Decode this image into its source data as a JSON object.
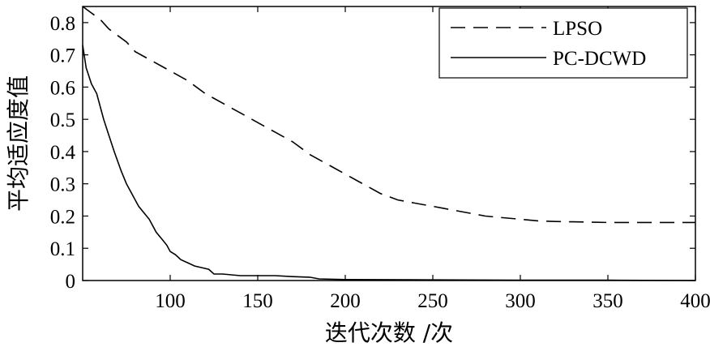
{
  "chart_data": {
    "type": "line",
    "xlabel": "迭代次数 /次",
    "ylabel": "平均适应度值",
    "xlim": [
      50,
      400
    ],
    "ylim": [
      0,
      0.85
    ],
    "xticks": [
      100,
      150,
      200,
      250,
      300,
      350,
      400
    ],
    "yticks": [
      0,
      0.1,
      0.2,
      0.3,
      0.4,
      0.5,
      0.6,
      0.7,
      0.8
    ],
    "grid": false,
    "legend": "top-right",
    "series": [
      {
        "name": "LPSO",
        "style": "dashed",
        "x": [
          50,
          55,
          60,
          65,
          70,
          75,
          80,
          90,
          100,
          110,
          120,
          130,
          140,
          150,
          160,
          170,
          180,
          190,
          200,
          210,
          220,
          230,
          240,
          250,
          260,
          270,
          280,
          290,
          300,
          310,
          320,
          330,
          340,
          350,
          360,
          370,
          380,
          390,
          400
        ],
        "y": [
          0.85,
          0.83,
          0.81,
          0.78,
          0.76,
          0.74,
          0.71,
          0.68,
          0.65,
          0.62,
          0.58,
          0.55,
          0.52,
          0.49,
          0.46,
          0.43,
          0.39,
          0.36,
          0.33,
          0.3,
          0.27,
          0.25,
          0.24,
          0.23,
          0.22,
          0.21,
          0.2,
          0.195,
          0.19,
          0.185,
          0.183,
          0.182,
          0.181,
          0.18,
          0.18,
          0.18,
          0.18,
          0.18,
          0.18
        ]
      },
      {
        "name": "PC-DCWD",
        "style": "solid",
        "x": [
          50,
          52,
          55,
          58,
          60,
          62,
          65,
          68,
          70,
          72,
          75,
          78,
          80,
          82,
          85,
          88,
          90,
          92,
          95,
          98,
          100,
          103,
          106,
          110,
          114,
          118,
          122,
          125,
          130,
          140,
          150,
          160,
          170,
          180,
          185,
          200,
          250,
          300,
          350,
          400
        ],
        "y": [
          0.73,
          0.66,
          0.61,
          0.58,
          0.54,
          0.5,
          0.45,
          0.4,
          0.37,
          0.34,
          0.3,
          0.27,
          0.25,
          0.23,
          0.21,
          0.19,
          0.17,
          0.15,
          0.13,
          0.11,
          0.09,
          0.08,
          0.065,
          0.055,
          0.045,
          0.04,
          0.035,
          0.02,
          0.02,
          0.015,
          0.015,
          0.015,
          0.012,
          0.01,
          0.005,
          0.003,
          0.002,
          0.001,
          0.001,
          0.0
        ]
      }
    ]
  }
}
